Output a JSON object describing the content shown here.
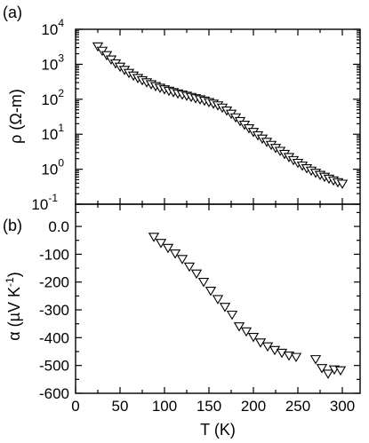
{
  "chart_data": [
    {
      "panel": "(a)",
      "type": "scatter",
      "marker": "down-triangle",
      "xlabel": "",
      "ylabel": "ρ (Ω-m)",
      "yscale": "log",
      "xlim": [
        0,
        320
      ],
      "ylim": [
        0.1,
        10000
      ],
      "y_ticks": [
        {
          "base": "10",
          "exp": "4"
        },
        {
          "base": "10",
          "exp": "3"
        },
        {
          "base": "10",
          "exp": "2"
        },
        {
          "base": "10",
          "exp": "1"
        },
        {
          "base": "10",
          "exp": "0"
        },
        {
          "base": "10",
          "exp": "-1"
        }
      ],
      "x": [
        25,
        30,
        35,
        40,
        45,
        50,
        55,
        60,
        65,
        70,
        75,
        80,
        85,
        90,
        95,
        100,
        105,
        110,
        115,
        120,
        125,
        130,
        135,
        140,
        145,
        150,
        155,
        160,
        165,
        170,
        175,
        180,
        185,
        190,
        195,
        200,
        205,
        210,
        215,
        220,
        225,
        230,
        235,
        240,
        245,
        250,
        255,
        260,
        265,
        270,
        275,
        280,
        285,
        290,
        295,
        300
      ],
      "y": [
        3200,
        2400,
        1800,
        1350,
        1050,
        840,
        680,
        560,
        470,
        400,
        345,
        300,
        265,
        235,
        210,
        190,
        172,
        158,
        145,
        134,
        124,
        115,
        106,
        98,
        90,
        82,
        74,
        66,
        57,
        47,
        38,
        30,
        23.5,
        18.5,
        14.6,
        11.5,
        9.2,
        7.4,
        6.0,
        4.9,
        4.0,
        3.3,
        2.7,
        2.2,
        1.8,
        1.5,
        1.25,
        1.05,
        0.9,
        0.78,
        0.68,
        0.6,
        0.53,
        0.47,
        0.42,
        0.38
      ]
    },
    {
      "panel": "(b)",
      "type": "scatter",
      "marker": "down-triangle",
      "xlabel": "T (K)",
      "ylabel": "α (µV K",
      "ylabel_superscript": "-1",
      "ylabel_suffix": ")",
      "xlim": [
        0,
        320
      ],
      "ylim": [
        -600,
        80
      ],
      "x_ticks": [
        "0",
        "50",
        "100",
        "150",
        "200",
        "250",
        "300"
      ],
      "y_ticks": [
        "0.0",
        "-100",
        "-200",
        "-300",
        "-400",
        "-500",
        "-600"
      ],
      "x": [
        88,
        96,
        104,
        112,
        120,
        128,
        136,
        144,
        152,
        160,
        168,
        176,
        184,
        192,
        200,
        208,
        216,
        224,
        232,
        240,
        248,
        270,
        277,
        284,
        291,
        298
      ],
      "y": [
        -38,
        -60,
        -78,
        -98,
        -118,
        -145,
        -170,
        -200,
        -232,
        -262,
        -290,
        -318,
        -360,
        -378,
        -398,
        -418,
        -432,
        -445,
        -455,
        -465,
        -470,
        -478,
        -510,
        -530,
        -515,
        -518
      ]
    }
  ]
}
